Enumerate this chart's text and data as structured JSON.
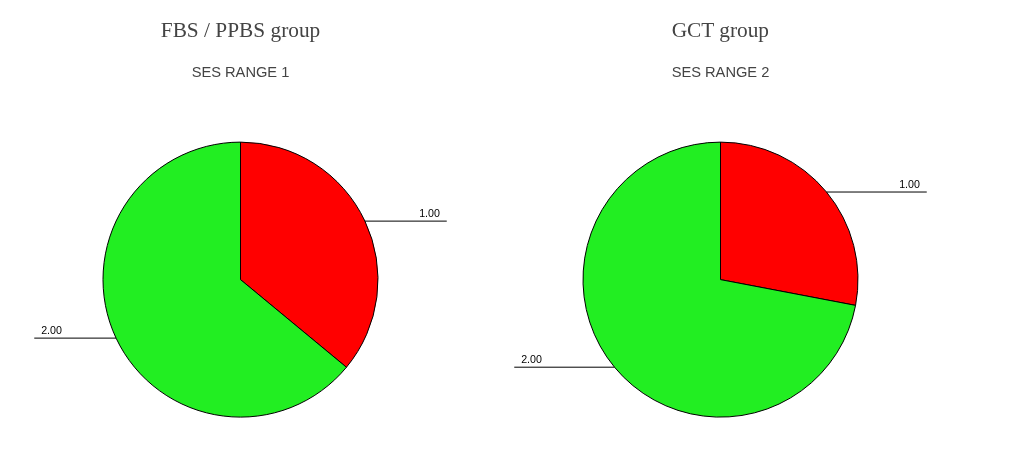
{
  "chart_data": [
    {
      "type": "pie",
      "title": "FBS / PPBS group",
      "subtitle": "SES RANGE 1",
      "categories": [
        "1.00",
        "2.00"
      ],
      "values": [
        36,
        64
      ],
      "colors": [
        "#ff0000",
        "#22ee22"
      ]
    },
    {
      "type": "pie",
      "title": "GCT group",
      "subtitle": "SES RANGE 2",
      "categories": [
        "1.00",
        "2.00"
      ],
      "values": [
        28,
        72
      ],
      "colors": [
        "#ff0000",
        "#22ee22"
      ]
    }
  ]
}
